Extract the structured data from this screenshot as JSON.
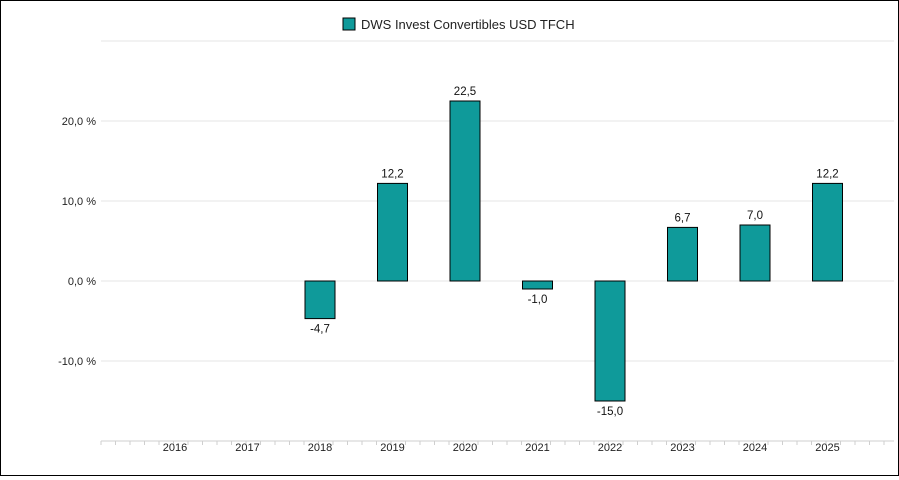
{
  "chart_data": {
    "type": "bar",
    "legend": {
      "placement": "top-center",
      "entries": [
        "DWS Invest Convertibles USD TFCH"
      ]
    },
    "categories": [
      "2016",
      "2017",
      "2018",
      "2019",
      "2020",
      "2021",
      "2022",
      "2023",
      "2024",
      "2025"
    ],
    "series": [
      {
        "name": "DWS Invest Convertibles USD TFCH",
        "color": "#0f9a9a",
        "values": [
          null,
          null,
          -4.7,
          12.2,
          22.5,
          -1.0,
          -15.0,
          6.7,
          7.0,
          12.2
        ],
        "labels": [
          "",
          "",
          "-4,7",
          "12,2",
          "22,5",
          "-1,0",
          "-15,0",
          "6,7",
          "7,0",
          "12,2"
        ]
      }
    ],
    "y_ticks": [
      20,
      10,
      0,
      -10
    ],
    "y_tick_labels": [
      "20,0 %",
      "10,0 %",
      "0,0 %",
      "-10,0 %"
    ],
    "ylim": [
      -20,
      30
    ],
    "grid": true
  }
}
